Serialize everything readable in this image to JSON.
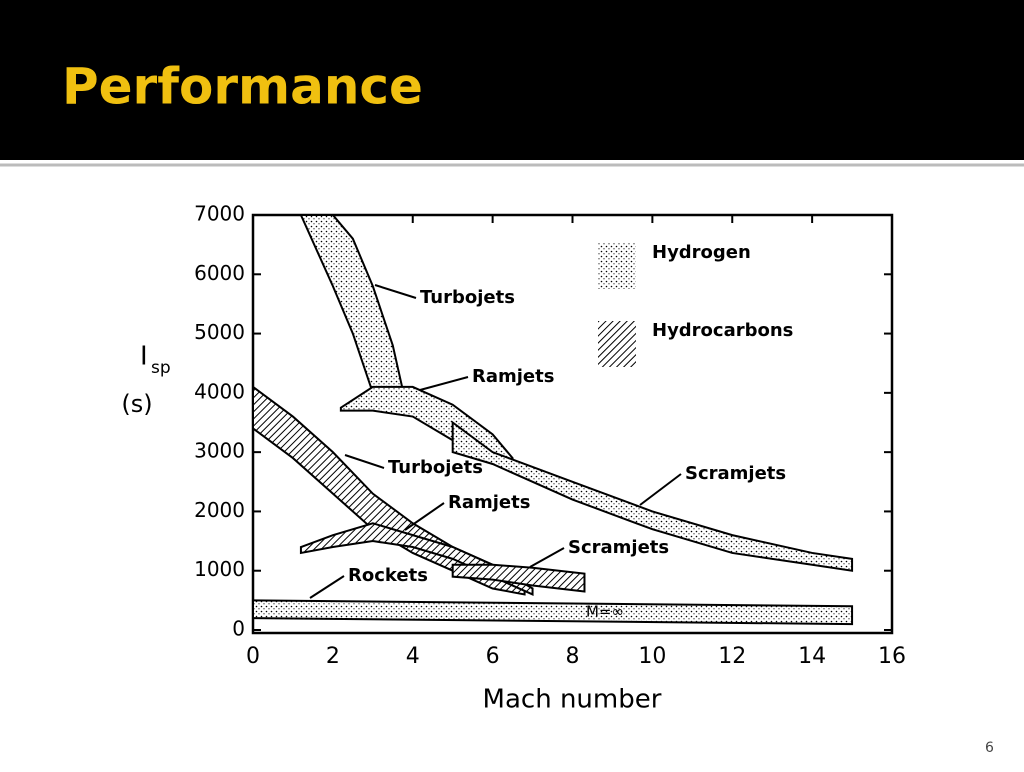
{
  "slide": {
    "title": "Performance",
    "page_number": "6"
  },
  "chart_data": {
    "type": "band",
    "ylabel": {
      "symbol": "I",
      "subscript": "sp",
      "unit": "(s)"
    },
    "xlabel": "Mach number",
    "xlim": [
      0,
      16
    ],
    "xticks": [
      0,
      2,
      4,
      6,
      8,
      10,
      12,
      14,
      16
    ],
    "ylim": [
      0,
      7000
    ],
    "yticks": [
      0,
      1000,
      2000,
      3000,
      4000,
      5000,
      6000,
      7000
    ],
    "legend": [
      {
        "name": "Hydrogen",
        "pattern": "dots"
      },
      {
        "name": "Hydrocarbons",
        "pattern": "hatch"
      }
    ],
    "bands": [
      {
        "label": "Turbojets",
        "fuel": 0,
        "x": [
          1.2,
          2,
          2.5,
          3,
          3.5,
          3.8
        ],
        "upper": [
          7000,
          7000,
          6600,
          5800,
          4800,
          3900
        ],
        "lower": [
          7000,
          5800,
          5000,
          4000,
          3700,
          3800
        ]
      },
      {
        "label": "Ramjets",
        "fuel": 0,
        "x": [
          2.2,
          3,
          4,
          5,
          6,
          6.5
        ],
        "upper": [
          3750,
          4100,
          4100,
          3800,
          3300,
          2900
        ],
        "lower": [
          3700,
          3700,
          3600,
          3200,
          2800,
          2800
        ]
      },
      {
        "label": "Scramjets",
        "fuel": 0,
        "x": [
          5,
          6,
          8,
          10,
          12,
          14,
          15
        ],
        "upper": [
          3500,
          3000,
          2500,
          2000,
          1600,
          1300,
          1200
        ],
        "lower": [
          3000,
          2800,
          2200,
          1700,
          1300,
          1100,
          1000
        ]
      },
      {
        "label": "Turbojets",
        "fuel": 1,
        "x": [
          0,
          1,
          2,
          3,
          4,
          5,
          6,
          6.8
        ],
        "upper": [
          4100,
          3600,
          3000,
          2300,
          1800,
          1400,
          1100,
          700
        ],
        "lower": [
          3400,
          2900,
          2300,
          1700,
          1300,
          1000,
          700,
          600
        ]
      },
      {
        "label": "Ramjets",
        "fuel": 1,
        "x": [
          1.2,
          2,
          3,
          4,
          5,
          6,
          7
        ],
        "upper": [
          1400,
          1600,
          1800,
          1600,
          1400,
          1100,
          700
        ],
        "lower": [
          1300,
          1400,
          1500,
          1400,
          1200,
          900,
          600
        ]
      },
      {
        "label": "Scramjets",
        "fuel": 1,
        "x": [
          5,
          6,
          7,
          8.3
        ],
        "upper": [
          1100,
          1100,
          1050,
          950
        ],
        "lower": [
          900,
          850,
          750,
          650
        ]
      },
      {
        "label": "Rockets",
        "fuel": 0,
        "x": [
          0,
          15
        ],
        "upper": [
          500,
          400
        ],
        "lower": [
          200,
          100
        ]
      }
    ],
    "annotation": "M=∞"
  }
}
